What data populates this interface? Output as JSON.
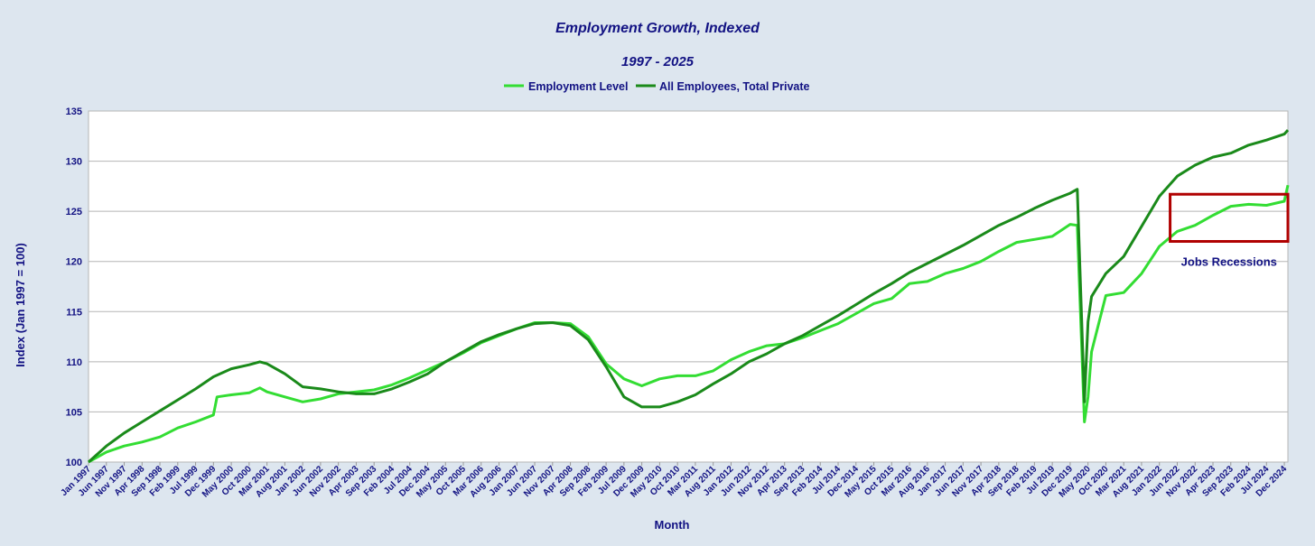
{
  "chart_data": {
    "type": "line",
    "title": "Employment Growth, Indexed",
    "subtitle": "1997 - 2025",
    "xlabel": "Month",
    "ylabel": "Index (Jan 1997 = 100)",
    "ylim": [
      100,
      135
    ],
    "yticks": [
      100,
      105,
      110,
      115,
      120,
      125,
      130,
      135
    ],
    "grid": true,
    "legend": "top-center",
    "x_ticks": [
      "Jan 1997",
      "Jun 1997",
      "Nov 1997",
      "Apr 1998",
      "Sep 1998",
      "Feb 1999",
      "Jul 1999",
      "Dec 1999",
      "May 2000",
      "Oct 2000",
      "Mar 2001",
      "Aug 2001",
      "Jan 2002",
      "Jun 2002",
      "Nov 2002",
      "Apr 2003",
      "Sep 2003",
      "Feb 2004",
      "Jul 2004",
      "Dec 2004",
      "May 2005",
      "Oct 2005",
      "Mar 2006",
      "Aug 2006",
      "Jan 2007",
      "Jun 2007",
      "Nov 2007",
      "Apr 2008",
      "Sep 2008",
      "Feb 2009",
      "Jul 2009",
      "Dec 2009",
      "May 2010",
      "Oct 2010",
      "Mar 2011",
      "Aug 2011",
      "Jan 2012",
      "Jun 2012",
      "Nov 2012",
      "Apr 2013",
      "Sep 2013",
      "Feb 2014",
      "Jul 2014",
      "Dec 2014",
      "May 2015",
      "Oct 2015",
      "Mar 2016",
      "Aug 2016",
      "Jan 2017",
      "Jun 2017",
      "Nov 2017",
      "Apr 2018",
      "Sep 2018",
      "Feb 2019",
      "Jul 2019",
      "Dec 2019",
      "May 2020",
      "Oct 2020",
      "Mar 2021",
      "Aug 2021",
      "Jan 2022",
      "Jun 2022",
      "Nov 2022",
      "Apr 2023",
      "Sep 2023",
      "Feb 2024",
      "Jul 2024",
      "Dec 2024"
    ],
    "series": [
      {
        "name": "Employment Level",
        "color": "#33dd33",
        "x": [
          "Jan 1997",
          "Jun 1997",
          "Nov 1997",
          "Apr 1998",
          "Sep 1998",
          "Feb 1999",
          "Jul 1999",
          "Dec 1999",
          "Jan 2000",
          "May 2000",
          "Oct 2000",
          "Jan 2001",
          "Mar 2001",
          "Aug 2001",
          "Jan 2002",
          "Jun 2002",
          "Nov 2002",
          "Apr 2003",
          "Sep 2003",
          "Feb 2004",
          "Jul 2004",
          "Dec 2004",
          "May 2005",
          "Oct 2005",
          "Mar 2006",
          "Aug 2006",
          "Jan 2007",
          "Jun 2007",
          "Nov 2007",
          "Apr 2008",
          "Sep 2008",
          "Feb 2009",
          "Jul 2009",
          "Dec 2009",
          "May 2010",
          "Oct 2010",
          "Mar 2011",
          "Aug 2011",
          "Jan 2012",
          "Jun 2012",
          "Nov 2012",
          "Apr 2013",
          "Sep 2013",
          "Feb 2014",
          "Jul 2014",
          "Dec 2014",
          "May 2015",
          "Oct 2015",
          "Mar 2016",
          "Aug 2016",
          "Jan 2017",
          "Jun 2017",
          "Nov 2017",
          "Apr 2018",
          "Sep 2018",
          "Feb 2019",
          "Jul 2019",
          "Dec 2019",
          "Feb 2020",
          "Apr 2020",
          "May 2020",
          "Jun 2020",
          "Oct 2020",
          "Mar 2021",
          "Aug 2021",
          "Jan 2022",
          "Jun 2022",
          "Nov 2022",
          "Apr 2023",
          "Sep 2023",
          "Feb 2024",
          "Jul 2024",
          "Dec 2024",
          "Jan 2025"
        ],
        "values": [
          100.0,
          101.0,
          101.6,
          102.0,
          102.5,
          103.4,
          104.0,
          104.7,
          106.5,
          106.7,
          106.9,
          107.4,
          107.0,
          106.5,
          106.0,
          106.3,
          106.8,
          107.0,
          107.2,
          107.7,
          108.4,
          109.2,
          110.0,
          110.9,
          111.9,
          112.6,
          113.3,
          113.9,
          113.9,
          113.8,
          112.5,
          109.8,
          108.3,
          107.6,
          108.3,
          108.6,
          108.6,
          109.1,
          110.2,
          111.0,
          111.6,
          111.8,
          112.4,
          113.1,
          113.8,
          114.8,
          115.8,
          116.3,
          117.8,
          118.0,
          118.8,
          119.3,
          120.0,
          121.0,
          121.9,
          122.2,
          122.5,
          123.7,
          123.6,
          104.0,
          106.5,
          111.0,
          116.6,
          116.9,
          118.8,
          121.5,
          123.0,
          123.6,
          124.6,
          125.5,
          125.7,
          125.6,
          126.0,
          127.6
        ]
      },
      {
        "name": "All Employees, Total Private",
        "color": "#1a8a1a",
        "x": [
          "Jan 1997",
          "Jun 1997",
          "Nov 1997",
          "Apr 1998",
          "Sep 1998",
          "Feb 1999",
          "Jul 1999",
          "Dec 1999",
          "May 2000",
          "Oct 2000",
          "Jan 2001",
          "Mar 2001",
          "Aug 2001",
          "Jan 2002",
          "Jun 2002",
          "Nov 2002",
          "Apr 2003",
          "Sep 2003",
          "Feb 2004",
          "Jul 2004",
          "Dec 2004",
          "May 2005",
          "Oct 2005",
          "Mar 2006",
          "Aug 2006",
          "Jan 2007",
          "Jun 2007",
          "Nov 2007",
          "Apr 2008",
          "Sep 2008",
          "Feb 2009",
          "Jul 2009",
          "Dec 2009",
          "May 2010",
          "Oct 2010",
          "Mar 2011",
          "Aug 2011",
          "Jan 2012",
          "Jun 2012",
          "Nov 2012",
          "Apr 2013",
          "Sep 2013",
          "Feb 2014",
          "Jul 2014",
          "Dec 2014",
          "May 2015",
          "Oct 2015",
          "Mar 2016",
          "Aug 2016",
          "Jan 2017",
          "Jun 2017",
          "Nov 2017",
          "Apr 2018",
          "Sep 2018",
          "Feb 2019",
          "Jul 2019",
          "Dec 2019",
          "Feb 2020",
          "Apr 2020",
          "May 2020",
          "Jun 2020",
          "Oct 2020",
          "Mar 2021",
          "Aug 2021",
          "Jan 2022",
          "Jun 2022",
          "Nov 2022",
          "Apr 2023",
          "Sep 2023",
          "Feb 2024",
          "Jul 2024",
          "Dec 2024",
          "Jan 2025"
        ],
        "values": [
          100.0,
          101.6,
          102.9,
          104.0,
          105.1,
          106.2,
          107.3,
          108.5,
          109.3,
          109.7,
          110.0,
          109.8,
          108.8,
          107.5,
          107.3,
          107.0,
          106.8,
          106.8,
          107.3,
          108.0,
          108.8,
          110.0,
          111.0,
          112.0,
          112.7,
          113.3,
          113.8,
          113.9,
          113.6,
          112.2,
          109.5,
          106.5,
          105.5,
          105.5,
          106.0,
          106.7,
          107.8,
          108.8,
          110.0,
          110.8,
          111.8,
          112.6,
          113.6,
          114.6,
          115.7,
          116.8,
          117.8,
          118.9,
          119.8,
          120.7,
          121.6,
          122.6,
          123.6,
          124.4,
          125.3,
          126.1,
          126.8,
          127.2,
          106.0,
          114.0,
          116.5,
          118.8,
          120.5,
          123.5,
          126.5,
          128.5,
          129.6,
          130.4,
          130.8,
          131.6,
          132.1,
          132.7,
          133.1
        ]
      }
    ],
    "annotation": {
      "label": "Jobs Recessions",
      "x_range": [
        "Apr 2022",
        "Jan 2025"
      ],
      "y_range": [
        122,
        126.7
      ],
      "color": "#b00000"
    }
  }
}
